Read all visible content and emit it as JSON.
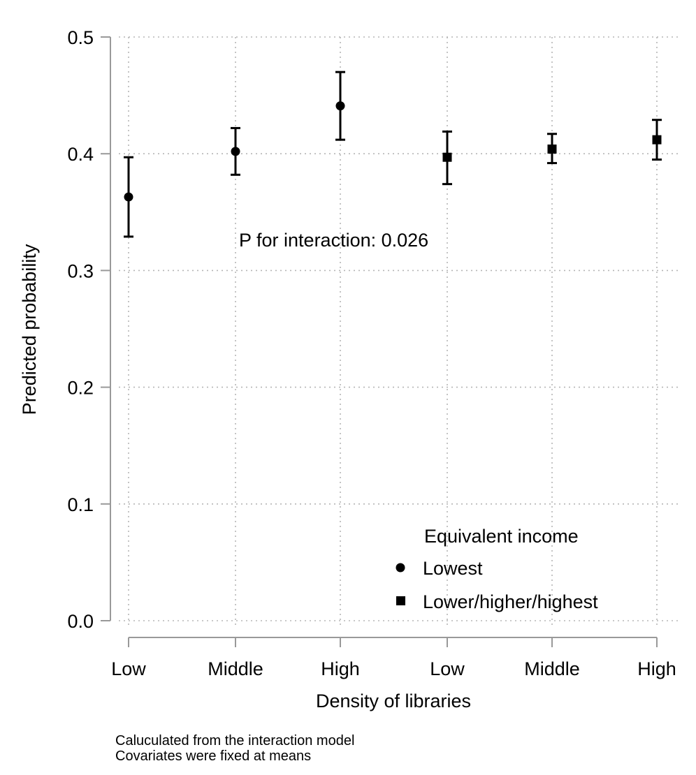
{
  "chart_data": {
    "type": "scatter",
    "subtype": "point-with-error-bars",
    "xlabel": "Density of libraries",
    "ylabel": "Predicted probability",
    "categories": [
      "Low",
      "Middle",
      "High",
      "Low",
      "Middle",
      "High"
    ],
    "ylim": [
      0.0,
      0.5
    ],
    "yticks": [
      "0.0",
      "0.1",
      "0.2",
      "0.3",
      "0.4",
      "0.5"
    ],
    "grid": true,
    "annotation": "P for interaction: 0.026",
    "legend": {
      "title": "Equivalent income",
      "placement": "bottom-right",
      "entries": [
        {
          "label": "Lowest",
          "marker": "circle"
        },
        {
          "label": "Lower/higher/highest",
          "marker": "square"
        }
      ]
    },
    "series": [
      {
        "name": "Lowest",
        "marker": "circle",
        "x_index": [
          0,
          1,
          2
        ],
        "values": [
          0.363,
          0.402,
          0.441
        ],
        "lower": [
          0.329,
          0.382,
          0.412
        ],
        "upper": [
          0.397,
          0.422,
          0.47
        ]
      },
      {
        "name": "Lower/higher/highest",
        "marker": "square",
        "x_index": [
          3,
          4,
          5
        ],
        "values": [
          0.397,
          0.404,
          0.412
        ],
        "lower": [
          0.374,
          0.392,
          0.395
        ],
        "upper": [
          0.419,
          0.417,
          0.429
        ]
      }
    ]
  },
  "footnotes": [
    "Caluculated from the interaction model",
    "Covariates were fixed at means"
  ],
  "colors": {
    "marks": "#000000",
    "axis": "#999999",
    "grid": "#b5b5b5"
  }
}
